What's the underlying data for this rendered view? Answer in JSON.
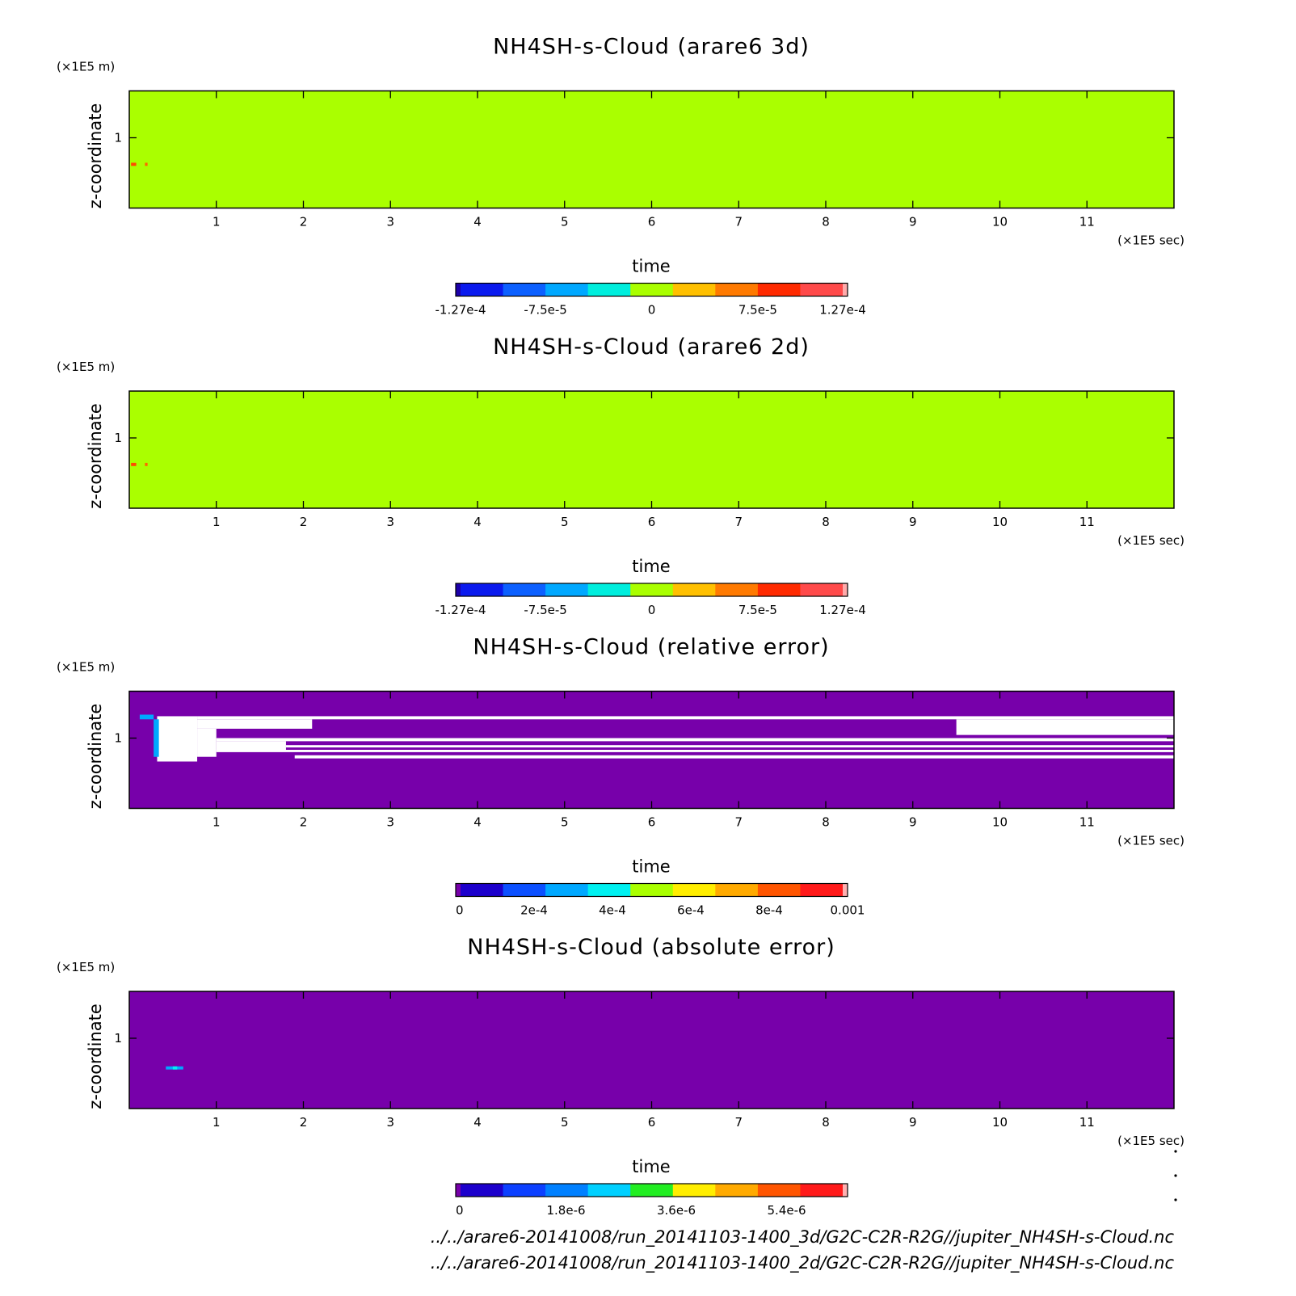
{
  "chart_data": [
    {
      "type": "heatmap",
      "title": "NH4SH-s-Cloud (arare6 3d)",
      "xlabel": "time",
      "ylabel": "z-coordinate",
      "x_unit": "(×1E5 sec)",
      "y_unit": "(×1E5 m)",
      "xlim": [
        0,
        12
      ],
      "ylim": [
        0.55,
        1.3
      ],
      "x_ticks": [
        "1",
        "2",
        "3",
        "4",
        "5",
        "6",
        "7",
        "8",
        "9",
        "10",
        "11"
      ],
      "y_ticks": [
        "1"
      ],
      "background_color": "#aaff00",
      "features": [
        {
          "x": [
            0.02,
            0.08
          ],
          "y": [
            0.82,
            0.84
          ],
          "color": "#ff4a00"
        },
        {
          "x": [
            0.18,
            0.21
          ],
          "y": [
            0.82,
            0.84
          ],
          "color": "#ff6600"
        }
      ],
      "colorbar": {
        "colors": [
          "#1c00aa",
          "#0a1aee",
          "#0c60ff",
          "#00a8ff",
          "#00eedd",
          "#aaff00",
          "#ffc000",
          "#ff7a00",
          "#ff2a00",
          "#ff4a4a",
          "#ffaaaa"
        ],
        "labels": [
          "-1.27e-4",
          "-7.5e-5",
          "0",
          "7.5e-5",
          "1.27e-4"
        ]
      }
    },
    {
      "type": "heatmap",
      "title": "NH4SH-s-Cloud (arare6 2d)",
      "xlabel": "time",
      "ylabel": "z-coordinate",
      "x_unit": "(×1E5 sec)",
      "y_unit": "(×1E5 m)",
      "xlim": [
        0,
        12
      ],
      "ylim": [
        0.55,
        1.3
      ],
      "x_ticks": [
        "1",
        "2",
        "3",
        "4",
        "5",
        "6",
        "7",
        "8",
        "9",
        "10",
        "11"
      ],
      "y_ticks": [
        "1"
      ],
      "background_color": "#aaff00",
      "features": [
        {
          "x": [
            0.02,
            0.08
          ],
          "y": [
            0.82,
            0.84
          ],
          "color": "#ff4a00"
        },
        {
          "x": [
            0.18,
            0.21
          ],
          "y": [
            0.82,
            0.84
          ],
          "color": "#ff6600"
        }
      ],
      "colorbar": {
        "colors": [
          "#1c00aa",
          "#0a1aee",
          "#0c60ff",
          "#00a8ff",
          "#00eedd",
          "#aaff00",
          "#ffc000",
          "#ff7a00",
          "#ff2a00",
          "#ff4a4a",
          "#ffaaaa"
        ],
        "labels": [
          "-1.27e-4",
          "-7.5e-5",
          "0",
          "7.5e-5",
          "1.27e-4"
        ]
      }
    },
    {
      "type": "heatmap",
      "title": "NH4SH-s-Cloud (relative error)",
      "xlabel": "time",
      "ylabel": "z-coordinate",
      "x_unit": "(×1E5 sec)",
      "y_unit": "(×1E5 m)",
      "xlim": [
        0,
        12
      ],
      "ylim": [
        0.55,
        1.3
      ],
      "x_ticks": [
        "1",
        "2",
        "3",
        "4",
        "5",
        "6",
        "7",
        "8",
        "9",
        "10",
        "11"
      ],
      "y_ticks": [
        "1"
      ],
      "background_color": "#7700aa",
      "features": [
        {
          "x": [
            0.32,
            0.78
          ],
          "y": [
            0.85,
            1.14
          ],
          "color": "#ffffff"
        },
        {
          "x": [
            0.78,
            12.0
          ],
          "y": [
            1.12,
            1.14
          ],
          "color": "#ffffff"
        },
        {
          "x": [
            0.78,
            2.1
          ],
          "y": [
            1.06,
            1.12
          ],
          "color": "#ffffff"
        },
        {
          "x": [
            0.78,
            1.0
          ],
          "y": [
            0.88,
            1.06
          ],
          "color": "#ffffff"
        },
        {
          "x": [
            9.5,
            12.0
          ],
          "y": [
            1.02,
            1.12
          ],
          "color": "#ffffff"
        },
        {
          "x": [
            1.0,
            12.0
          ],
          "y": [
            0.98,
            1.0
          ],
          "color": "#ffffff"
        },
        {
          "x": [
            1.8,
            12.0
          ],
          "y": [
            0.94,
            0.955
          ],
          "color": "#ffffff"
        },
        {
          "x": [
            1.0,
            12.0
          ],
          "y": [
            0.91,
            0.925
          ],
          "color": "#ffffff"
        },
        {
          "x": [
            1.9,
            12.0
          ],
          "y": [
            0.87,
            0.89
          ],
          "color": "#ffffff"
        },
        {
          "x": [
            1.0,
            1.8
          ],
          "y": [
            0.92,
            0.98
          ],
          "color": "#ffffff"
        },
        {
          "x": [
            0.28,
            0.34
          ],
          "y": [
            0.88,
            1.12
          ],
          "color": "#00a8ff"
        },
        {
          "x": [
            0.12,
            0.28
          ],
          "y": [
            1.12,
            1.15
          ],
          "color": "#00a8ff"
        }
      ],
      "colorbar": {
        "colors": [
          "#7700aa",
          "#1c00cc",
          "#0c50ff",
          "#00a8ff",
          "#00f0f0",
          "#aaff00",
          "#ffee00",
          "#ffaa00",
          "#ff5500",
          "#ff1a1a",
          "#ffb0b0"
        ],
        "labels": [
          "0",
          "2e-4",
          "4e-4",
          "6e-4",
          "8e-4",
          "0.001"
        ]
      }
    },
    {
      "type": "heatmap",
      "title": "NH4SH-s-Cloud (absolute error)",
      "xlabel": "time",
      "ylabel": "z-coordinate",
      "x_unit": "(×1E5 sec)",
      "y_unit": "(×1E5 m)",
      "xlim": [
        0,
        12
      ],
      "ylim": [
        0.55,
        1.3
      ],
      "x_ticks": [
        "1",
        "2",
        "3",
        "4",
        "5",
        "6",
        "7",
        "8",
        "9",
        "10",
        "11"
      ],
      "y_ticks": [
        "1"
      ],
      "background_color": "#7700aa",
      "features": [
        {
          "x": [
            0.42,
            0.62
          ],
          "y": [
            0.8,
            0.82
          ],
          "color": "#00a8ff"
        },
        {
          "x": [
            0.5,
            0.55
          ],
          "y": [
            0.8,
            0.82
          ],
          "color": "#00f0f0"
        }
      ],
      "colorbar": {
        "colors": [
          "#7700aa",
          "#1c00cc",
          "#0c40ff",
          "#0080ff",
          "#00d0ff",
          "#22ee22",
          "#ffee00",
          "#ffaa00",
          "#ff5500",
          "#ff1a1a",
          "#ffb0b0"
        ],
        "labels": [
          "0",
          "1.8e-6",
          "3.6e-6",
          "5.4e-6"
        ]
      }
    }
  ],
  "footer": {
    "path_3d": "../../arare6-20141008/run_20141103-1400_3d/G2C-C2R-R2G//jupiter_NH4SH-s-Cloud.nc",
    "path_2d": "../../arare6-20141008/run_20141103-1400_2d/G2C-C2R-R2G//jupiter_NH4SH-s-Cloud.nc"
  }
}
